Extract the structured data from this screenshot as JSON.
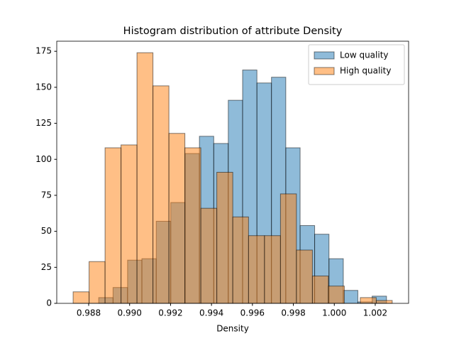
{
  "chart_data": {
    "type": "histogram",
    "title": "Histogram distribution of attribute Density",
    "xlabel": "Density",
    "series": [
      {
        "name": "Low quality",
        "color": "#1f77b4",
        "bins": [
          0.98849,
          0.98919,
          0.9899,
          0.9906,
          0.9913,
          0.99201,
          0.99271,
          0.99341,
          0.99411,
          0.99482,
          0.99552,
          0.99622,
          0.99693,
          0.99763,
          0.99833,
          0.99904,
          0.99974,
          1.00044,
          1.00115,
          1.00185,
          1.00255
        ],
        "values": [
          4,
          11,
          30,
          31,
          57,
          70,
          104,
          116,
          111,
          141,
          162,
          153,
          157,
          108,
          54,
          48,
          31,
          9,
          1,
          5
        ]
      },
      {
        "name": "High quality",
        "color": "#ff7f0e",
        "bins": [
          0.98724,
          0.98802,
          0.9888,
          0.98958,
          0.99036,
          0.99114,
          0.99192,
          0.9927,
          0.99348,
          0.99426,
          0.99504,
          0.99581,
          0.99659,
          0.99737,
          0.99815,
          0.99893,
          0.99971,
          1.00049,
          1.00127,
          1.00205,
          1.00283
        ],
        "values": [
          8,
          29,
          108,
          110,
          174,
          151,
          118,
          108,
          66,
          91,
          60,
          47,
          47,
          76,
          37,
          19,
          12,
          0,
          4,
          2
        ]
      }
    ],
    "alpha": 0.5,
    "xlim": [
      0.98644,
      1.00363
    ],
    "ylim": [
      0,
      182
    ],
    "xticks": [
      0.988,
      {
        "value": 0.99,
        "label": "0.990"
      },
      0.992,
      0.994,
      0.996,
      0.998,
      {
        "value": 1,
        "label": "1.000"
      },
      1.002
    ],
    "yticks": [
      0,
      25,
      50,
      75,
      100,
      125,
      150,
      175
    ],
    "grid": false,
    "legend": "upper right"
  }
}
